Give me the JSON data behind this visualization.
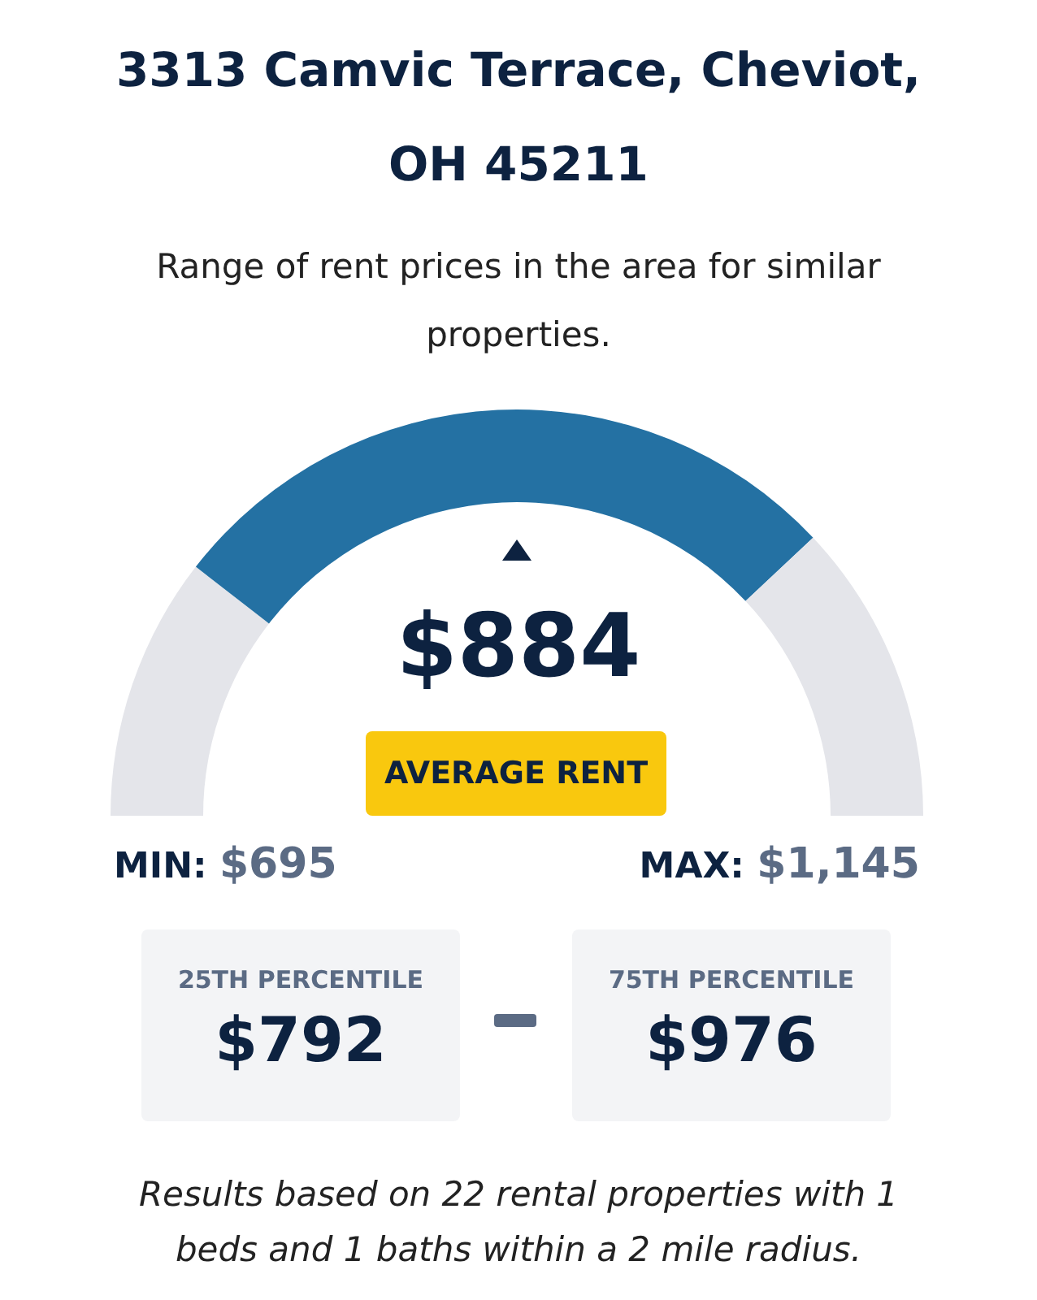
{
  "chart_data": {
    "type": "donut",
    "title": "3313 Camvic Terrace, Cheviot, OH 45211",
    "subtitle": "Range of rent prices in the area for similar properties.",
    "categories": [
      null,
      null,
      null
    ],
    "values": [
      21,
      55,
      24
    ],
    "colors": [
      "#e4e5ea",
      "#2471a3",
      "#e4e5ea"
    ],
    "annotations": [
      "$884",
      "AVERAGE RENT",
      "MIN:",
      "$695",
      "MAX:",
      "$1,145",
      "25TH PERCENTILE",
      "$792",
      "75TH PERCENTILE",
      "$976",
      "Results based on 22 rental properties with 1 beds and 1 baths within a 2 mile radius."
    ]
  }
}
